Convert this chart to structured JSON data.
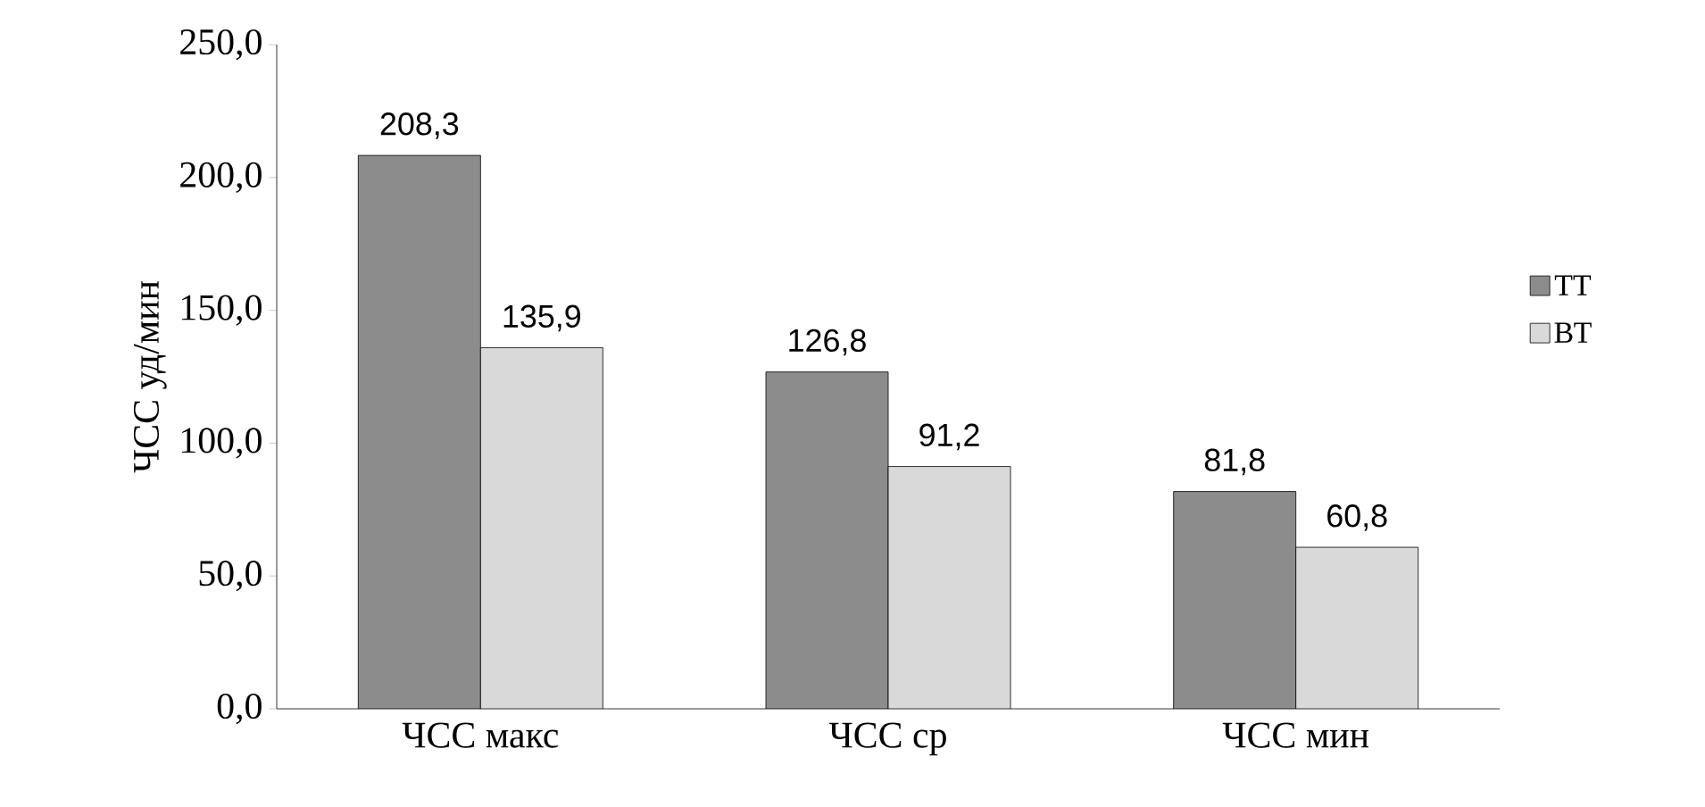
{
  "chart_data": {
    "type": "bar",
    "ylabel": "ЧСС уд/мин",
    "categories": [
      "ЧСС макс",
      "ЧСС ср",
      "ЧСС мин"
    ],
    "series": [
      {
        "name": "ТТ",
        "color": "#8c8c8c",
        "values": [
          208.3,
          126.8,
          81.8
        ],
        "value_labels": [
          "208,3",
          "126,8",
          "81,8"
        ]
      },
      {
        "name": "ВТ",
        "color": "#d9d9d9",
        "values": [
          135.9,
          91.2,
          60.8
        ],
        "value_labels": [
          "135,9",
          "91,2",
          "60,8"
        ]
      }
    ],
    "ylim": [
      0,
      250
    ],
    "yticks": [
      {
        "value": 0,
        "label": "0,0"
      },
      {
        "value": 50,
        "label": "50,0"
      },
      {
        "value": 100,
        "label": "100,0"
      },
      {
        "value": 150,
        "label": "150,0"
      },
      {
        "value": 200,
        "label": "200,0"
      },
      {
        "value": 250,
        "label": "250,0"
      }
    ],
    "legend": "right",
    "grid": false
  }
}
